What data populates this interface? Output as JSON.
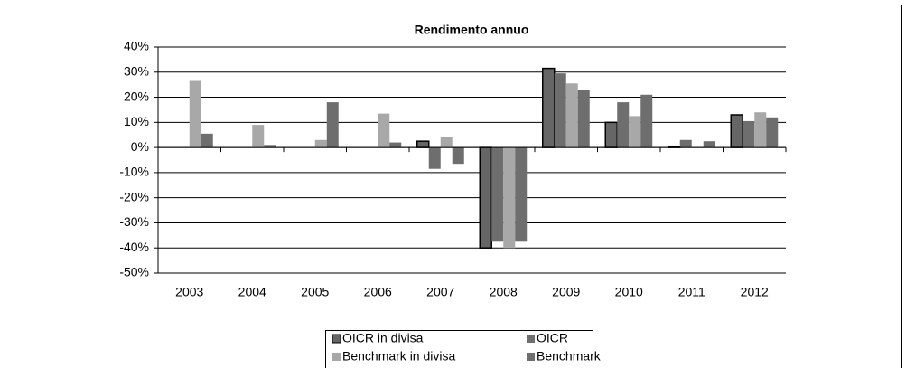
{
  "chart_data": {
    "type": "bar",
    "title": "Rendimento annuo",
    "categories": [
      "2003",
      "2004",
      "2005",
      "2006",
      "2007",
      "2008",
      "2009",
      "2010",
      "2011",
      "2012"
    ],
    "series": [
      {
        "name": "OICR in divisa",
        "color": "#666666",
        "values": [
          null,
          null,
          null,
          null,
          2.5,
          -40,
          31.5,
          10,
          0.5,
          13
        ]
      },
      {
        "name": "OICR",
        "color": "#6e6e6e",
        "values": [
          null,
          null,
          null,
          null,
          -8.5,
          -37.5,
          29.5,
          18,
          3,
          10.5
        ]
      },
      {
        "name": "Benchmark in divisa",
        "color": "#a8a8a8",
        "values": [
          26.5,
          9,
          3,
          13.5,
          4,
          -40,
          25.5,
          12.5,
          0,
          14
        ]
      },
      {
        "name": "Benchmark",
        "color": "#6e6e6e",
        "values": [
          5.5,
          1,
          18,
          2,
          -6.5,
          -37.5,
          23,
          21,
          2.5,
          12
        ]
      }
    ],
    "ylim": [
      -50,
      40
    ],
    "yticks": [
      {
        "value": -50,
        "label": "-50%"
      },
      {
        "value": -40,
        "label": "-40%"
      },
      {
        "value": -30,
        "label": "-30%"
      },
      {
        "value": -20,
        "label": "-20%"
      },
      {
        "value": -10,
        "label": "-10%"
      },
      {
        "value": 0,
        "label": "0%"
      },
      {
        "value": 10,
        "label": "10%"
      },
      {
        "value": 20,
        "label": "20%"
      },
      {
        "value": 30,
        "label": "30%"
      },
      {
        "value": 40,
        "label": "40%"
      }
    ],
    "grid": true,
    "legend": "bottom"
  }
}
